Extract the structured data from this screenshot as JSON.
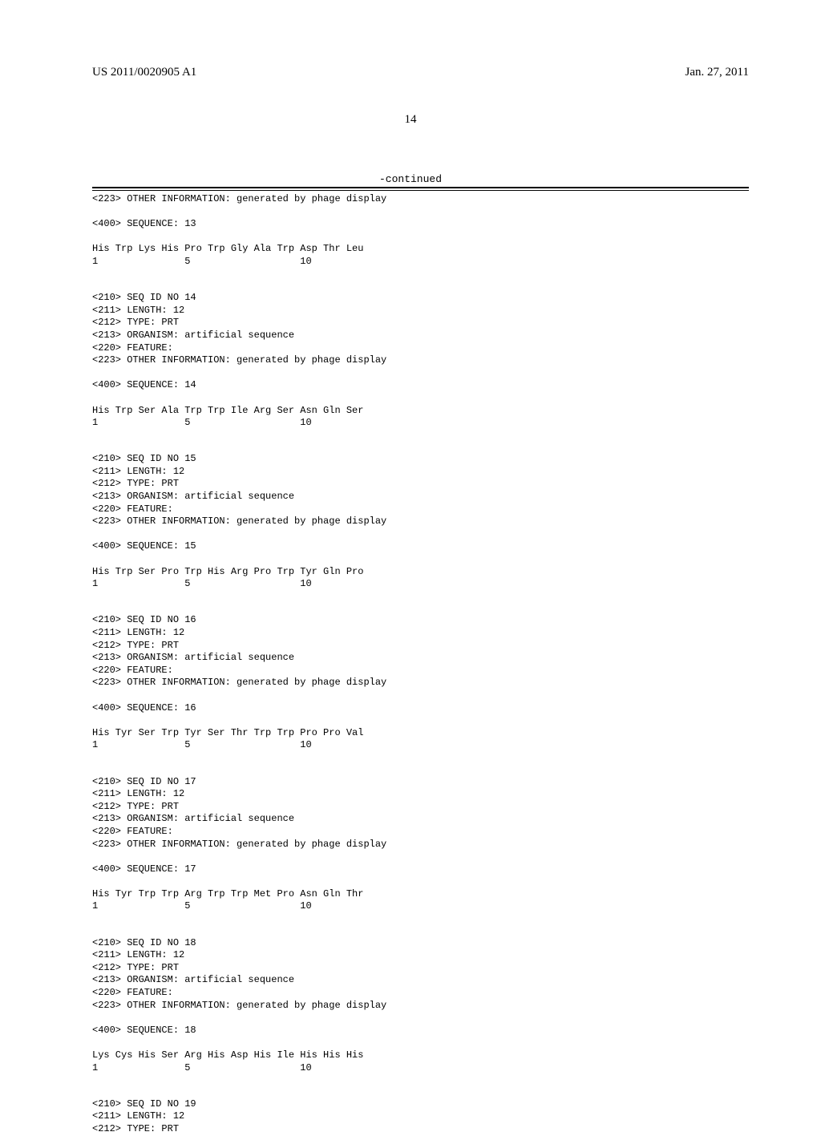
{
  "header": {
    "publication_number": "US 2011/0020905 A1",
    "publication_date": "Jan. 27, 2011"
  },
  "page_number": "14",
  "continued_label": "-continued",
  "sequences": [
    {
      "header_lines": [
        "<223> OTHER INFORMATION: generated by phage display"
      ],
      "seq_num_label": "<400> SEQUENCE: 13",
      "residues": "His Trp Lys His Pro Trp Gly Ala Trp Asp Thr Leu",
      "positions": "1               5                   10"
    },
    {
      "header_lines": [
        "<210> SEQ ID NO 14",
        "<211> LENGTH: 12",
        "<212> TYPE: PRT",
        "<213> ORGANISM: artificial sequence",
        "<220> FEATURE:",
        "<223> OTHER INFORMATION: generated by phage display"
      ],
      "seq_num_label": "<400> SEQUENCE: 14",
      "residues": "His Trp Ser Ala Trp Trp Ile Arg Ser Asn Gln Ser",
      "positions": "1               5                   10"
    },
    {
      "header_lines": [
        "<210> SEQ ID NO 15",
        "<211> LENGTH: 12",
        "<212> TYPE: PRT",
        "<213> ORGANISM: artificial sequence",
        "<220> FEATURE:",
        "<223> OTHER INFORMATION: generated by phage display"
      ],
      "seq_num_label": "<400> SEQUENCE: 15",
      "residues": "His Trp Ser Pro Trp His Arg Pro Trp Tyr Gln Pro",
      "positions": "1               5                   10"
    },
    {
      "header_lines": [
        "<210> SEQ ID NO 16",
        "<211> LENGTH: 12",
        "<212> TYPE: PRT",
        "<213> ORGANISM: artificial sequence",
        "<220> FEATURE:",
        "<223> OTHER INFORMATION: generated by phage display"
      ],
      "seq_num_label": "<400> SEQUENCE: 16",
      "residues": "His Tyr Ser Trp Tyr Ser Thr Trp Trp Pro Pro Val",
      "positions": "1               5                   10"
    },
    {
      "header_lines": [
        "<210> SEQ ID NO 17",
        "<211> LENGTH: 12",
        "<212> TYPE: PRT",
        "<213> ORGANISM: artificial sequence",
        "<220> FEATURE:",
        "<223> OTHER INFORMATION: generated by phage display"
      ],
      "seq_num_label": "<400> SEQUENCE: 17",
      "residues": "His Tyr Trp Trp Arg Trp Trp Met Pro Asn Gln Thr",
      "positions": "1               5                   10"
    },
    {
      "header_lines": [
        "<210> SEQ ID NO 18",
        "<211> LENGTH: 12",
        "<212> TYPE: PRT",
        "<213> ORGANISM: artificial sequence",
        "<220> FEATURE:",
        "<223> OTHER INFORMATION: generated by phage display"
      ],
      "seq_num_label": "<400> SEQUENCE: 18",
      "residues": "Lys Cys His Ser Arg His Asp His Ile His His His",
      "positions": "1               5                   10"
    },
    {
      "header_lines": [
        "<210> SEQ ID NO 19",
        "<211> LENGTH: 12",
        "<212> TYPE: PRT"
      ],
      "seq_num_label": null,
      "residues": null,
      "positions": null
    }
  ]
}
